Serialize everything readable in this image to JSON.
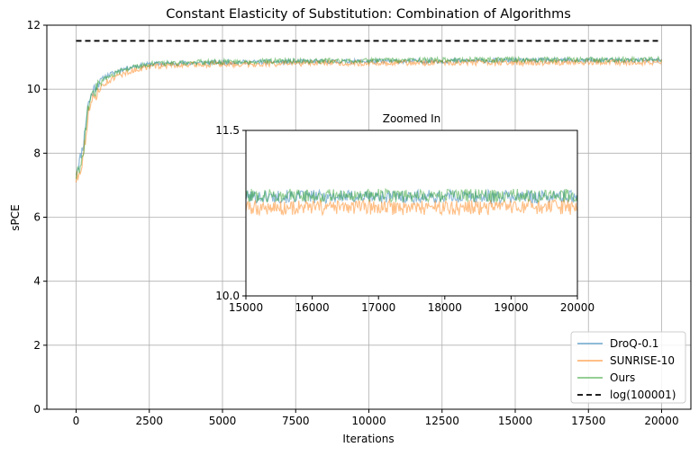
{
  "chart_data": [
    {
      "type": "line",
      "title": "Constant Elasticity of Substitution: Combination of Algorithms",
      "xlabel": "Iterations",
      "ylabel": "sPCE",
      "xlim": [
        -1000,
        21000
      ],
      "ylim": [
        0,
        12
      ],
      "x_ticks": [
        0,
        2500,
        5000,
        7500,
        10000,
        12500,
        15000,
        17500,
        20000
      ],
      "y_ticks": [
        0,
        2,
        4,
        6,
        8,
        10,
        12
      ],
      "grid": true,
      "legend_position": "lower-right",
      "series": [
        {
          "name": "DroQ-0.1",
          "color": "#1f77b4",
          "style": "solid",
          "alpha": 0.5,
          "x": [
            0,
            100,
            250,
            400,
            600,
            800,
            1000,
            1500,
            2000,
            2500,
            3000,
            4000,
            5000,
            7500,
            10000,
            12500,
            15000,
            17500,
            20000
          ],
          "y": [
            7.4,
            7.7,
            8.3,
            9.5,
            10.0,
            10.25,
            10.4,
            10.6,
            10.72,
            10.78,
            10.8,
            10.82,
            10.84,
            10.86,
            10.87,
            10.88,
            10.9,
            10.9,
            10.9
          ],
          "noise": 0.07
        },
        {
          "name": "SUNRISE-10",
          "color": "#ff7f0e",
          "style": "solid",
          "alpha": 0.5,
          "x": [
            0,
            100,
            250,
            400,
            600,
            800,
            1000,
            1500,
            2000,
            2500,
            3000,
            4000,
            5000,
            7500,
            10000,
            12500,
            15000,
            17500,
            20000
          ],
          "y": [
            7.2,
            7.4,
            7.9,
            9.2,
            9.7,
            10.0,
            10.2,
            10.45,
            10.6,
            10.7,
            10.74,
            10.77,
            10.78,
            10.8,
            10.82,
            10.83,
            10.83,
            10.84,
            10.84
          ],
          "noise": 0.09
        },
        {
          "name": "Ours",
          "color": "#2ca02c",
          "style": "solid",
          "alpha": 0.5,
          "x": [
            0,
            100,
            250,
            400,
            600,
            800,
            1000,
            1500,
            2000,
            2500,
            3000,
            4000,
            5000,
            7500,
            10000,
            12500,
            15000,
            17500,
            20000
          ],
          "y": [
            7.3,
            7.5,
            8.1,
            9.4,
            9.9,
            10.15,
            10.35,
            10.55,
            10.7,
            10.78,
            10.8,
            10.84,
            10.86,
            10.88,
            10.9,
            10.91,
            10.92,
            10.92,
            10.93
          ],
          "noise": 0.08
        },
        {
          "name": "log(100001)",
          "color": "#000000",
          "style": "dashed",
          "x": [
            0,
            20000
          ],
          "y": [
            11.51,
            11.51
          ]
        }
      ]
    },
    {
      "type": "line",
      "title": "Zoomed In",
      "xlim": [
        15000,
        20000
      ],
      "ylim": [
        10.0,
        11.5
      ],
      "x_ticks": [
        15000,
        16000,
        17000,
        18000,
        19000,
        20000
      ],
      "y_ticks": [
        10.0,
        11.5
      ],
      "y_tick_labels": [
        "10.0",
        "11.5"
      ],
      "grid": false,
      "series": [
        {
          "name": "DroQ-0.1",
          "color": "#1f77b4",
          "x": [
            15000,
            20000
          ],
          "y": [
            10.9,
            10.9
          ],
          "noise": 0.06
        },
        {
          "name": "SUNRISE-10",
          "color": "#ff7f0e",
          "x": [
            15000,
            20000
          ],
          "y": [
            10.8,
            10.8
          ],
          "noise": 0.07
        },
        {
          "name": "Ours",
          "color": "#2ca02c",
          "x": [
            15000,
            20000
          ],
          "y": [
            10.91,
            10.91
          ],
          "noise": 0.06
        }
      ]
    }
  ]
}
